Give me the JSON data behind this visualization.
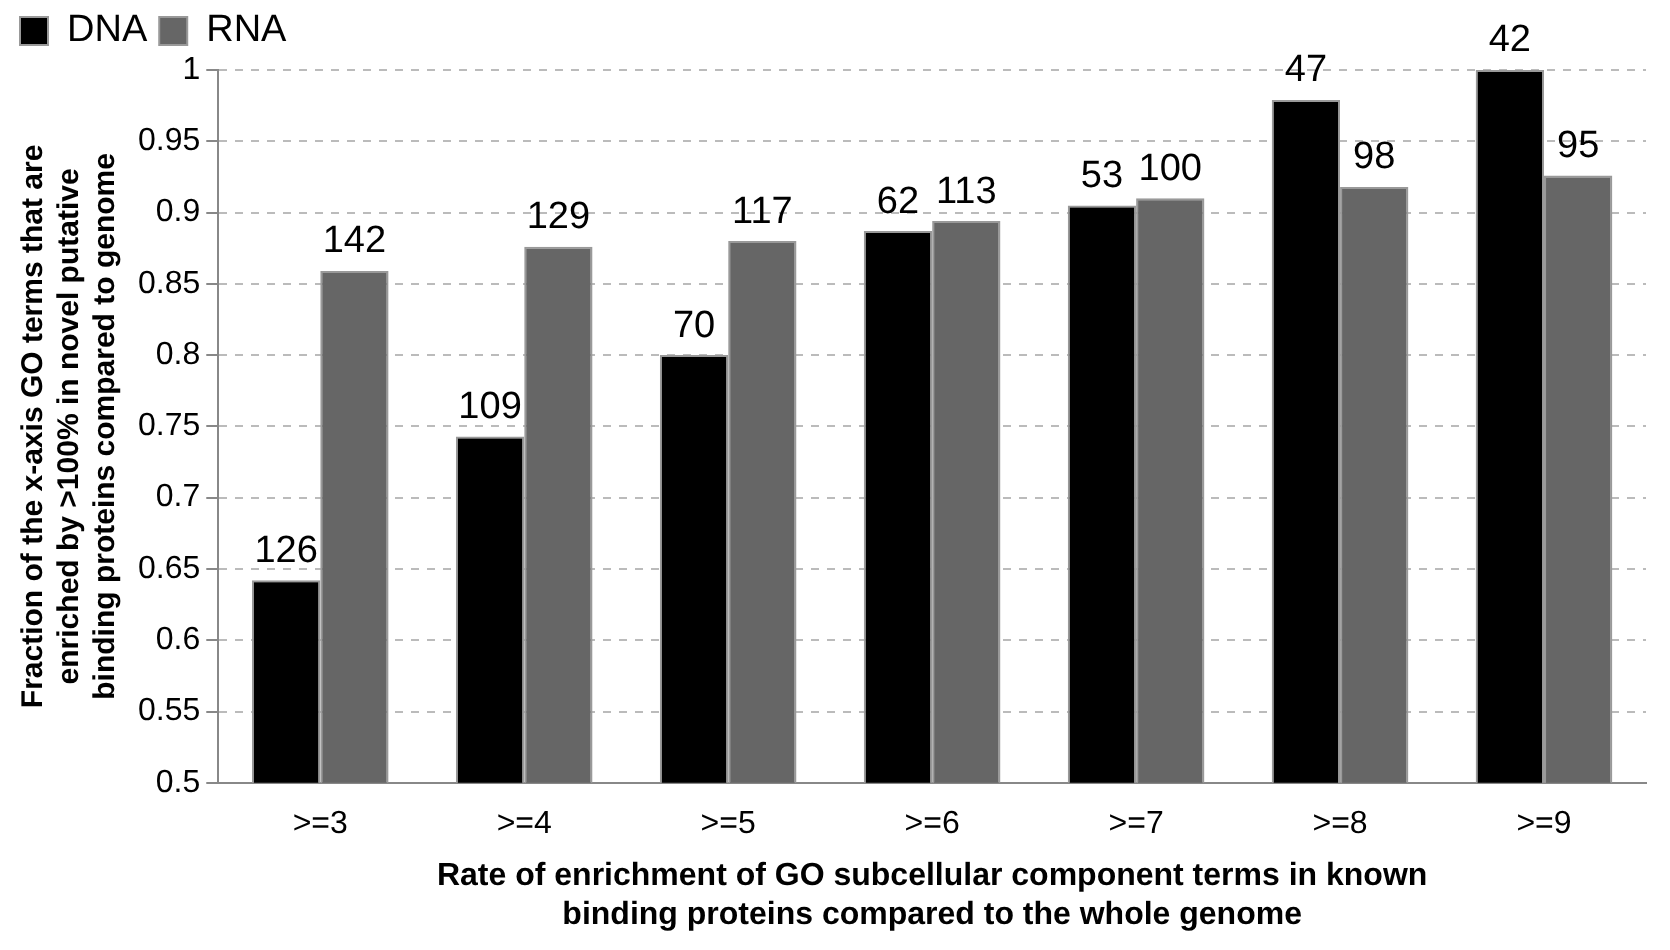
{
  "chart_data": {
    "type": "bar",
    "xlabel": "Rate of enrichment of GO subcellular component terms in known\nbinding proteins compared to the whole genome",
    "ylabel": "Fraction of the x-axis GO terms that are\nenriched by >100% in novel putative\nbinding proteins compared to genome",
    "categories": [
      ">=3",
      ">=4",
      ">=5",
      ">=6",
      ">=7",
      ">=8",
      ">=9"
    ],
    "series": [
      {
        "name": "DNA",
        "color": "#000000",
        "values": [
          0.642,
          0.743,
          0.8,
          0.887,
          0.905,
          0.979,
          1.0
        ]
      },
      {
        "name": "RNA",
        "color": "#666666",
        "values": [
          0.859,
          0.876,
          0.88,
          0.894,
          0.91,
          0.918,
          0.926
        ]
      }
    ],
    "annotations": [
      {
        "text": "126",
        "x": ">=3",
        "y": 0.642
      },
      {
        "text": "109",
        "x": ">=4",
        "y": 0.743
      },
      {
        "text": "70",
        "x": ">=5",
        "y": 0.8
      },
      {
        "text": "62",
        "x": ">=6",
        "y": 0.887
      },
      {
        "text": "53",
        "x": ">=7",
        "y": 0.905
      },
      {
        "text": "47",
        "x": ">=8",
        "y": 0.979
      },
      {
        "text": "42",
        "x": ">=9",
        "y": 1.0
      },
      {
        "text": "142",
        "x": ">=3",
        "y": 0.859
      },
      {
        "text": "129",
        "x": ">=4",
        "y": 0.876
      },
      {
        "text": "117",
        "x": ">=5",
        "y": 0.88
      },
      {
        "text": "113",
        "x": ">=6",
        "y": 0.894
      },
      {
        "text": "100",
        "x": ">=7",
        "y": 0.91
      },
      {
        "text": "98",
        "x": ">=8",
        "y": 0.918
      },
      {
        "text": "95",
        "x": ">=9",
        "y": 0.926
      }
    ],
    "ylim": [
      0.5,
      1
    ],
    "yticks": [
      0.5,
      0.55,
      0.6,
      0.65,
      0.7,
      0.75,
      0.8,
      0.85,
      0.9,
      0.95,
      1
    ],
    "grid": "y",
    "legend": "top left"
  }
}
